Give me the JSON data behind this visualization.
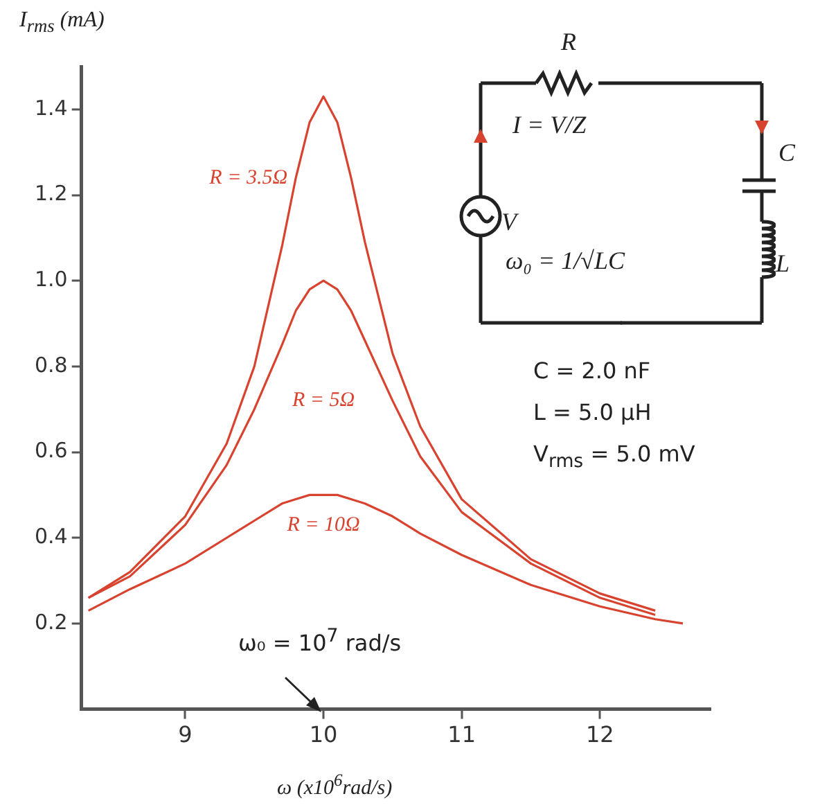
{
  "chart_data": {
    "type": "line",
    "xlabel": "ω (x10$^{6}$rad/s)",
    "ylabel": "I$_{rms}$ (mA)",
    "x": [
      8.3,
      8.6,
      9.0,
      9.3,
      9.5,
      9.7,
      9.8,
      9.9,
      10.0,
      10.1,
      10.2,
      10.3,
      10.5,
      10.7,
      11.0,
      11.5,
      12.0,
      12.4
    ],
    "series": [
      {
        "name": "R = 3.5Ω",
        "color": "#d8432f",
        "values": [
          0.26,
          0.32,
          0.45,
          0.62,
          0.8,
          1.08,
          1.24,
          1.37,
          1.43,
          1.37,
          1.24,
          1.09,
          0.83,
          0.66,
          0.49,
          0.35,
          0.27,
          0.23
        ]
      },
      {
        "name": "R = 5Ω",
        "color": "#d8432f",
        "values": [
          0.26,
          0.31,
          0.43,
          0.57,
          0.7,
          0.85,
          0.93,
          0.98,
          1.0,
          0.98,
          0.93,
          0.86,
          0.72,
          0.59,
          0.46,
          0.34,
          0.26,
          0.22
        ]
      },
      {
        "name": "R = 10Ω",
        "color": "#d8432f",
        "x": [
          8.3,
          8.6,
          9.0,
          9.3,
          9.5,
          9.7,
          9.8,
          9.9,
          10.0,
          10.1,
          10.2,
          10.3,
          10.5,
          10.7,
          11.0,
          11.5,
          12.0,
          12.4,
          12.6
        ],
        "values": [
          0.23,
          0.28,
          0.34,
          0.4,
          0.44,
          0.48,
          0.49,
          0.5,
          0.5,
          0.5,
          0.49,
          0.48,
          0.45,
          0.41,
          0.36,
          0.29,
          0.24,
          0.21,
          0.2
        ]
      }
    ],
    "xlim": [
      8.25,
      12.8
    ],
    "xticks": [
      9,
      10,
      11,
      12
    ],
    "ylim": [
      0,
      1.5
    ],
    "yticks": [
      0.2,
      0.4,
      0.6,
      0.8,
      {
        "value": 1.0,
        "label": "1.0"
      },
      1.2,
      1.4
    ],
    "grid": false,
    "legend": false,
    "marker": "none",
    "line_style": "solid",
    "annotations": [
      "ω₀ = 10$^{7}$ rad/s",
      "R",
      "I = V/Z",
      "C",
      "V",
      "ω₀ = 1/√LC",
      "L",
      "C = 2.0 nF",
      "L = 5.0 µH",
      "V$_{rms}$ = 5.0 mV"
    ]
  }
}
